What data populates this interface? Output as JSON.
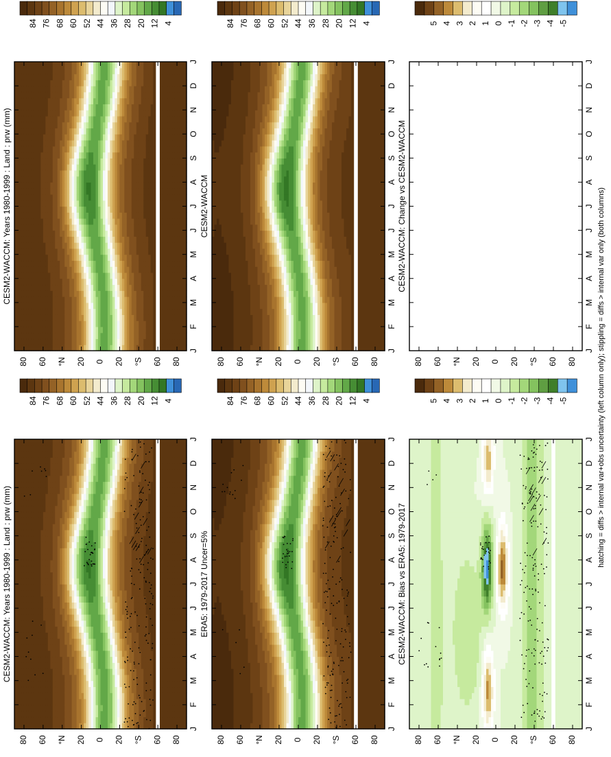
{
  "footnote": "hatching = diffs > internal var+obs uncertainty (left column only); stippling = diffs > internal var only (both columns)",
  "colors": {
    "full": [
      "#4a2a0c",
      "#5c3610",
      "#6e4216",
      "#80501e",
      "#946226",
      "#a8742e",
      "#bd8a3a",
      "#cfa250",
      "#dcbc6e",
      "#e8d49a",
      "#f3ebcd",
      "#fdfcf4",
      "#f3f7fb",
      "#def4c9",
      "#c6ea9e",
      "#a3d77a",
      "#84c25f",
      "#62a848",
      "#468d34",
      "#337725",
      "#3f90d9",
      "#2868b4"
    ],
    "diff": [
      "#4a2a0c",
      "#6e4216",
      "#946226",
      "#bd8a3a",
      "#dcbc6e",
      "#f3ebcd",
      "#fdfcf4",
      "#ffffff",
      "#f1f9e6",
      "#def4c9",
      "#c6ea9e",
      "#a3d77a",
      "#84c25f",
      "#5f9e42",
      "#3f7f2a",
      "#7fc4ee",
      "#3f90d9"
    ]
  },
  "colorbars": {
    "full_labels": [
      "84",
      "76",
      "68",
      "60",
      "52",
      "44",
      "36",
      "28",
      "20",
      "12",
      "4"
    ],
    "diff_labels": [
      "5",
      "4",
      "3",
      "2",
      "1",
      "0",
      "-1",
      "-2",
      "-3",
      "-4",
      "-5"
    ]
  },
  "panels": [
    {
      "id": "model-left",
      "title": "CESM2-WACCM: Years 1980-1999 : Land : prw (mm)",
      "colorbar": "full"
    },
    {
      "id": "model-right",
      "title": "CESM2-WACCM: Years 1980-1999 : Land : prw (mm)",
      "colorbar": "full"
    },
    {
      "id": "obs-left",
      "title": "ERA5: 1979-2017 Uncer=5%",
      "colorbar": "full"
    },
    {
      "id": "obs-right",
      "title": "CESM2-WACCM",
      "colorbar": "full"
    },
    {
      "id": "bias-left",
      "title": "CESM2-WACCM: Bias vs ERA5: 1979-2017",
      "colorbar": "diff"
    },
    {
      "id": "change-right",
      "title": "CESM2-WACCM: Change vs CESM2-WACCM",
      "colorbar": "diff"
    }
  ],
  "chart_data": {
    "type": "heatmap",
    "title": "CESM2-WACCM: Years 1980-1999 : Land : prw (mm)",
    "x": [
      "J",
      "F",
      "M",
      "A",
      "M",
      "J",
      "J",
      "A",
      "S",
      "O",
      "N",
      "D",
      "J"
    ],
    "xlabel": "",
    "y_ticks": [
      "80",
      "60",
      "°N",
      "20",
      "0",
      "20",
      "°S",
      "60",
      "80"
    ],
    "ylabel": "",
    "ylim": [
      -90,
      90
    ],
    "units": "mm",
    "full_levels": [
      4,
      12,
      20,
      28,
      36,
      44,
      52,
      60,
      68,
      76,
      84
    ],
    "diff_levels": [
      -5,
      -4,
      -3,
      -2,
      -1,
      0,
      1,
      2,
      3,
      4,
      5
    ],
    "masked_band_lat": [
      -62,
      -58
    ],
    "grid": false,
    "legend": "right"
  }
}
